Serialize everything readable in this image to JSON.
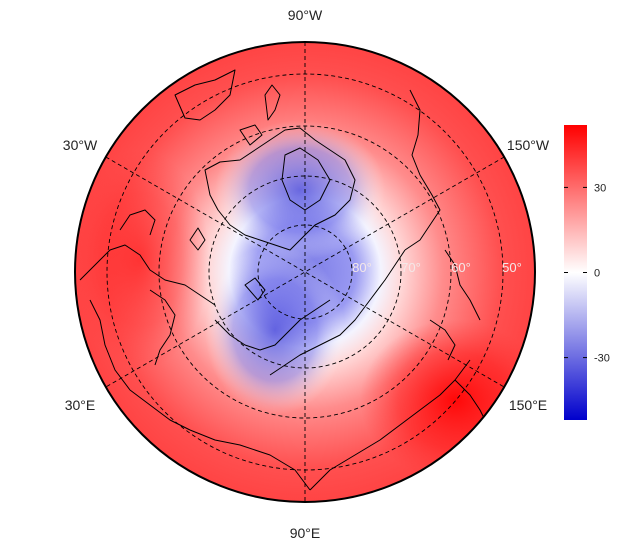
{
  "map": {
    "projection": "north-polar-stereographic",
    "longitude_labels": {
      "top": "90°W",
      "bottom": "90°E",
      "upper_left": "30°W",
      "upper_right": "150°W",
      "lower_left": "30°E",
      "lower_right": "150°E"
    },
    "latitude_labels": [
      "80°",
      "70°",
      "60°",
      "50°"
    ],
    "graticule": {
      "latitudes": [
        80,
        70,
        60,
        50
      ],
      "meridian_step_deg": 60,
      "style": "dashed"
    },
    "field": {
      "description_colors": "blue over Greenland and the Barents/Kara Sea sector, white transition ring, red over mid-latitudes strongest over East Asia and the North Atlantic"
    }
  },
  "colorbar": {
    "ticks": [
      "30",
      "0",
      "-30"
    ],
    "tick_values": [
      30,
      0,
      -30
    ],
    "range": [
      -52,
      52
    ],
    "colors": {
      "high": "#ff0000",
      "mid": "#ffffff",
      "low": "#0000cc"
    }
  }
}
